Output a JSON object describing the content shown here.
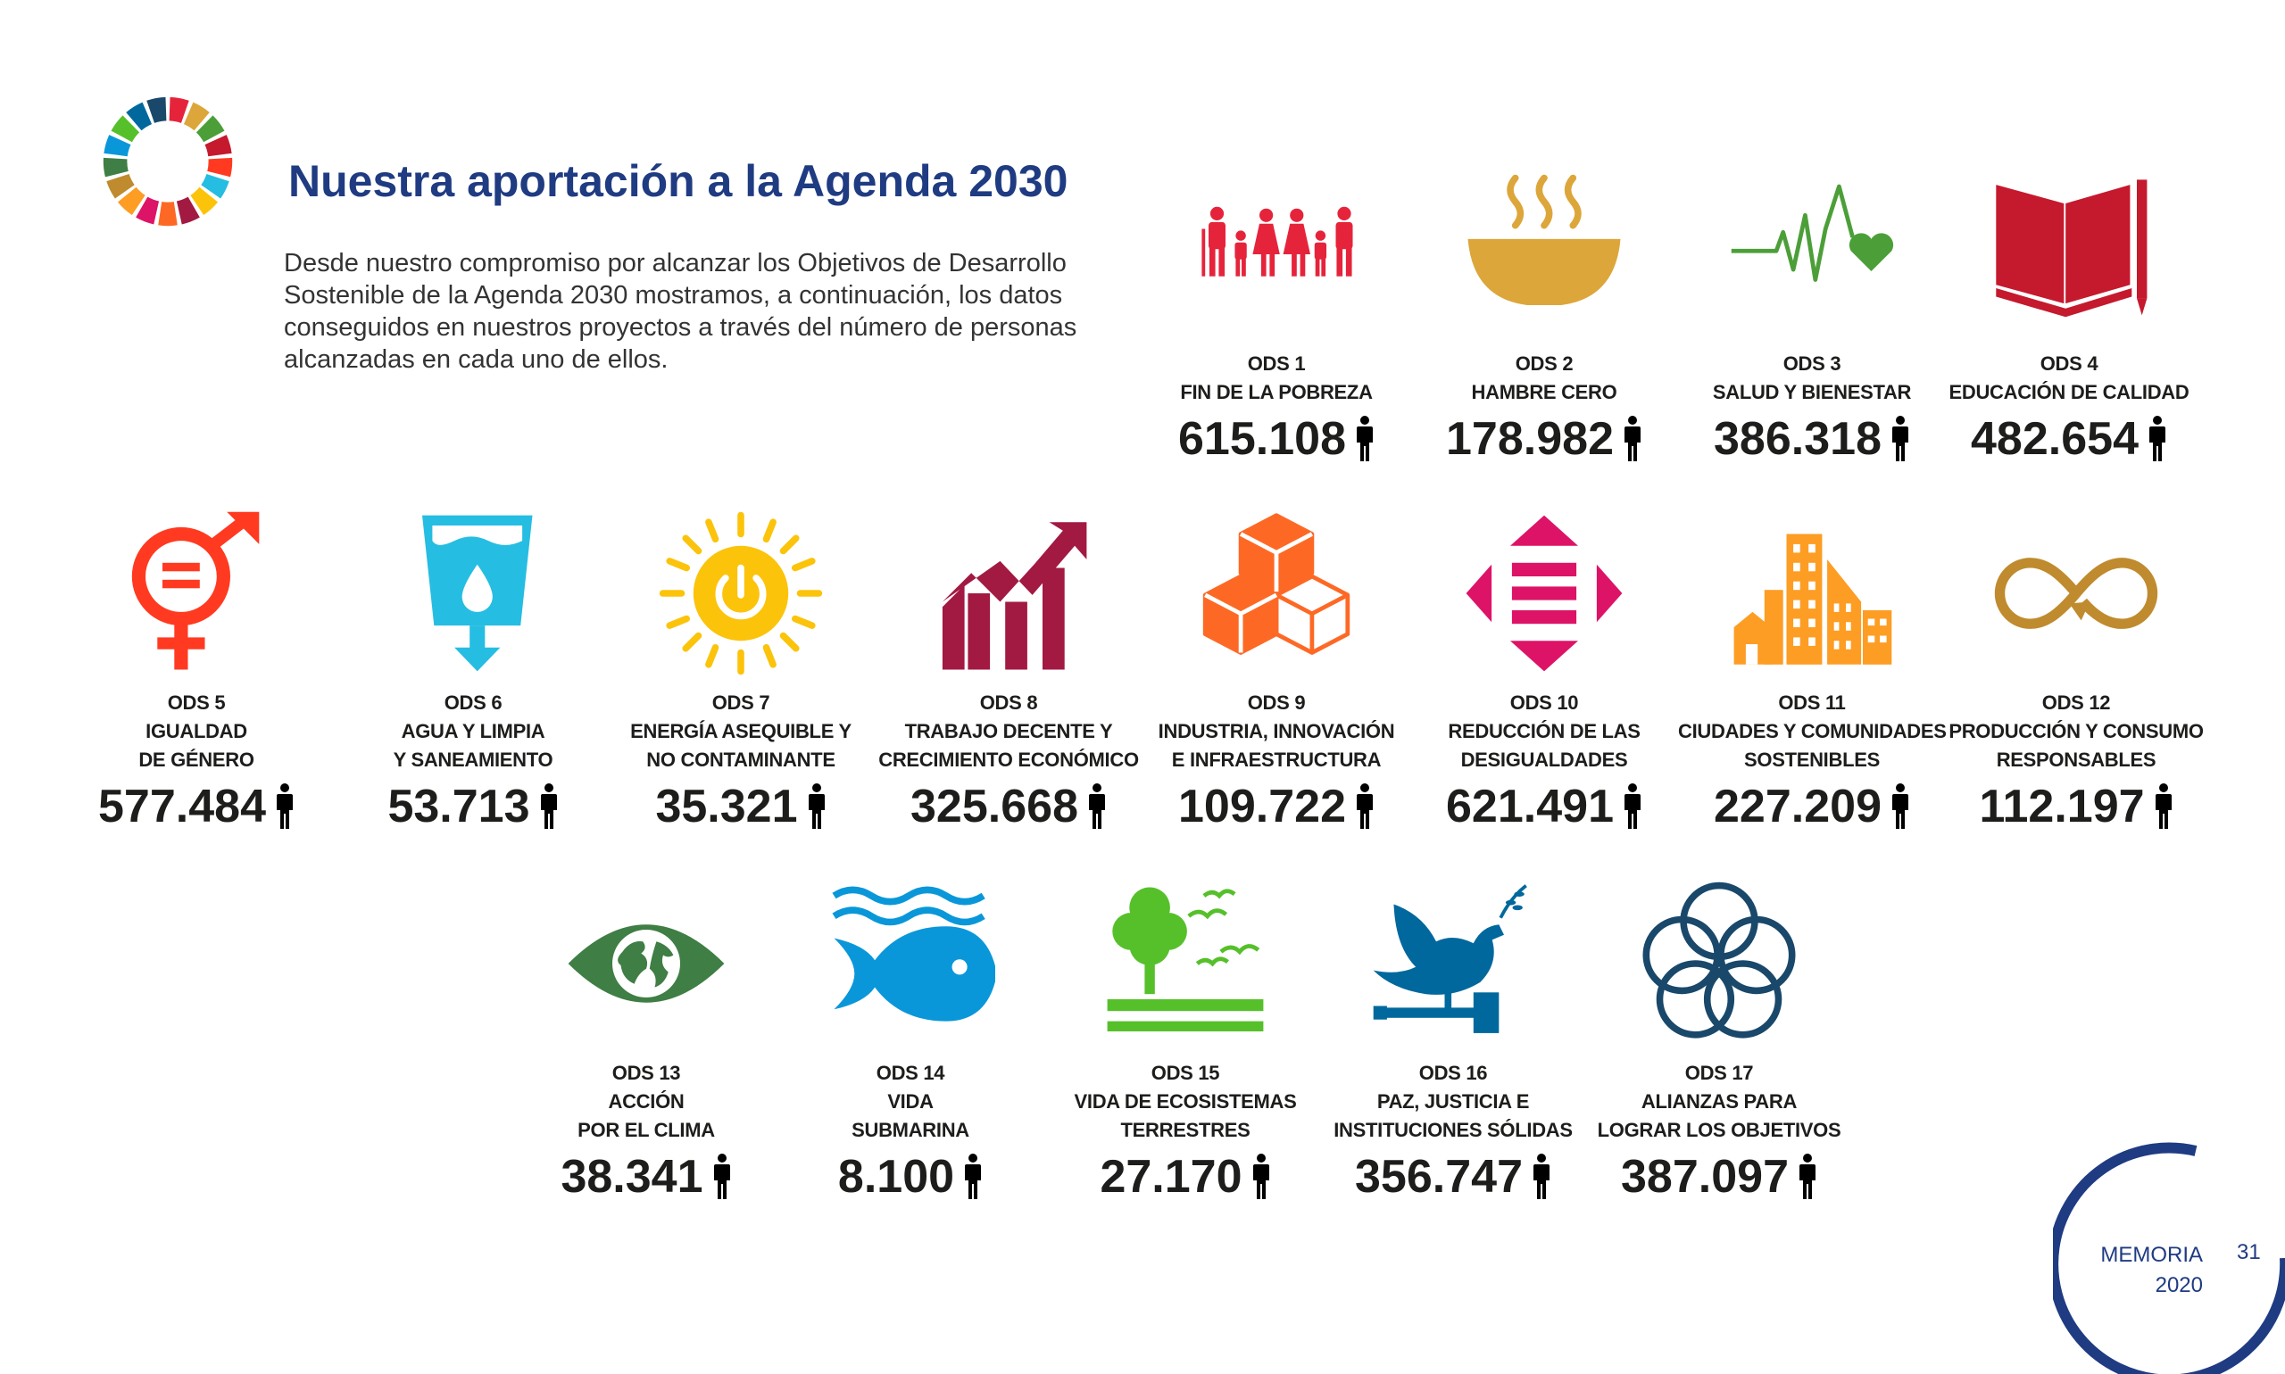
{
  "header": {
    "title": "Nuestra aportación a la Agenda 2030",
    "intro": "Desde nuestro compromiso por alcanzar los Objetivos de Desarrollo Sostenible de la Agenda 2030 mostramos, a continuación, los datos conseguidos en nuestros proyectos a través del número de personas alcanzadas en cada uno de ellos."
  },
  "sdgs": [
    {
      "code": "ODS 1",
      "name": [
        "FIN DE LA POBREZA"
      ],
      "value": "615.108",
      "color": "#e5243b",
      "icon": "family-icon"
    },
    {
      "code": "ODS 2",
      "name": [
        "HAMBRE CERO"
      ],
      "value": "178.982",
      "color": "#dda63a",
      "icon": "bowl-icon"
    },
    {
      "code": "ODS 3",
      "name": [
        "SALUD Y BIENESTAR"
      ],
      "value": "386.318",
      "color": "#4c9f38",
      "icon": "heartbeat-icon"
    },
    {
      "code": "ODS 4",
      "name": [
        "EDUCACIÓN DE CALIDAD"
      ],
      "value": "482.654",
      "color": "#c5192d",
      "icon": "book-icon"
    },
    {
      "code": "ODS 5",
      "name": [
        "IGUALDAD",
        "DE GÉNERO"
      ],
      "value": "577.484",
      "color": "#ff3a21",
      "icon": "gender-icon"
    },
    {
      "code": "ODS 6",
      "name": [
        "AGUA Y LIMPIA",
        "Y SANEAMIENTO"
      ],
      "value": "53.713",
      "color": "#26bde2",
      "icon": "water-icon"
    },
    {
      "code": "ODS 7",
      "name": [
        "ENERGÍA ASEQUIBLE Y",
        "NO CONTAMINANTE"
      ],
      "value": "35.321",
      "color": "#fcc30b",
      "icon": "sun-power-icon"
    },
    {
      "code": "ODS 8",
      "name": [
        "TRABAJO DECENTE Y",
        "CRECIMIENTO ECONÓMICO"
      ],
      "value": "325.668",
      "color": "#a21942",
      "icon": "growth-chart-icon"
    },
    {
      "code": "ODS 9",
      "name": [
        "INDUSTRIA, INNOVACIÓN",
        "E INFRAESTRUCTURA"
      ],
      "value": "109.722",
      "color": "#fd6925",
      "icon": "cubes-icon"
    },
    {
      "code": "ODS 10",
      "name": [
        "REDUCCIÓN DE LAS",
        "DESIGUALDADES"
      ],
      "value": "621.491",
      "color": "#dd1367",
      "icon": "equality-arrows-icon"
    },
    {
      "code": "ODS 11",
      "name": [
        "CIUDADES Y COMUNIDADES",
        "SOSTENIBLES"
      ],
      "value": "227.209",
      "color": "#fd9d24",
      "icon": "city-icon"
    },
    {
      "code": "ODS 12",
      "name": [
        "PRODUCCIÓN Y CONSUMO",
        "RESPONSABLES"
      ],
      "value": "112.197",
      "color": "#bf8b2e",
      "icon": "infinity-icon"
    },
    {
      "code": "ODS 13",
      "name": [
        "ACCIÓN",
        "POR EL CLIMA"
      ],
      "value": "38.341",
      "color": "#3f7e44",
      "icon": "earth-eye-icon"
    },
    {
      "code": "ODS 14",
      "name": [
        "VIDA",
        "SUBMARINA"
      ],
      "value": "8.100",
      "color": "#0a97d9",
      "icon": "fish-icon"
    },
    {
      "code": "ODS 15",
      "name": [
        "VIDA DE ECOSISTEMAS",
        "TERRESTRES"
      ],
      "value": "27.170",
      "color": "#56c02b",
      "icon": "tree-birds-icon"
    },
    {
      "code": "ODS 16",
      "name": [
        "PAZ, JUSTICIA E",
        "INSTITUCIONES SÓLIDAS"
      ],
      "value": "356.747",
      "color": "#00689d",
      "icon": "dove-gavel-icon"
    },
    {
      "code": "ODS 17",
      "name": [
        "ALIANZAS PARA",
        "LOGRAR LOS OBJETIVOS"
      ],
      "value": "387.097",
      "color": "#19486a",
      "icon": "rings-icon"
    }
  ],
  "footer": {
    "label": "MEMORIA",
    "year": "2020",
    "page": "31"
  },
  "colors": {
    "title": "#1f3b82",
    "text": "#1d1d1b"
  }
}
